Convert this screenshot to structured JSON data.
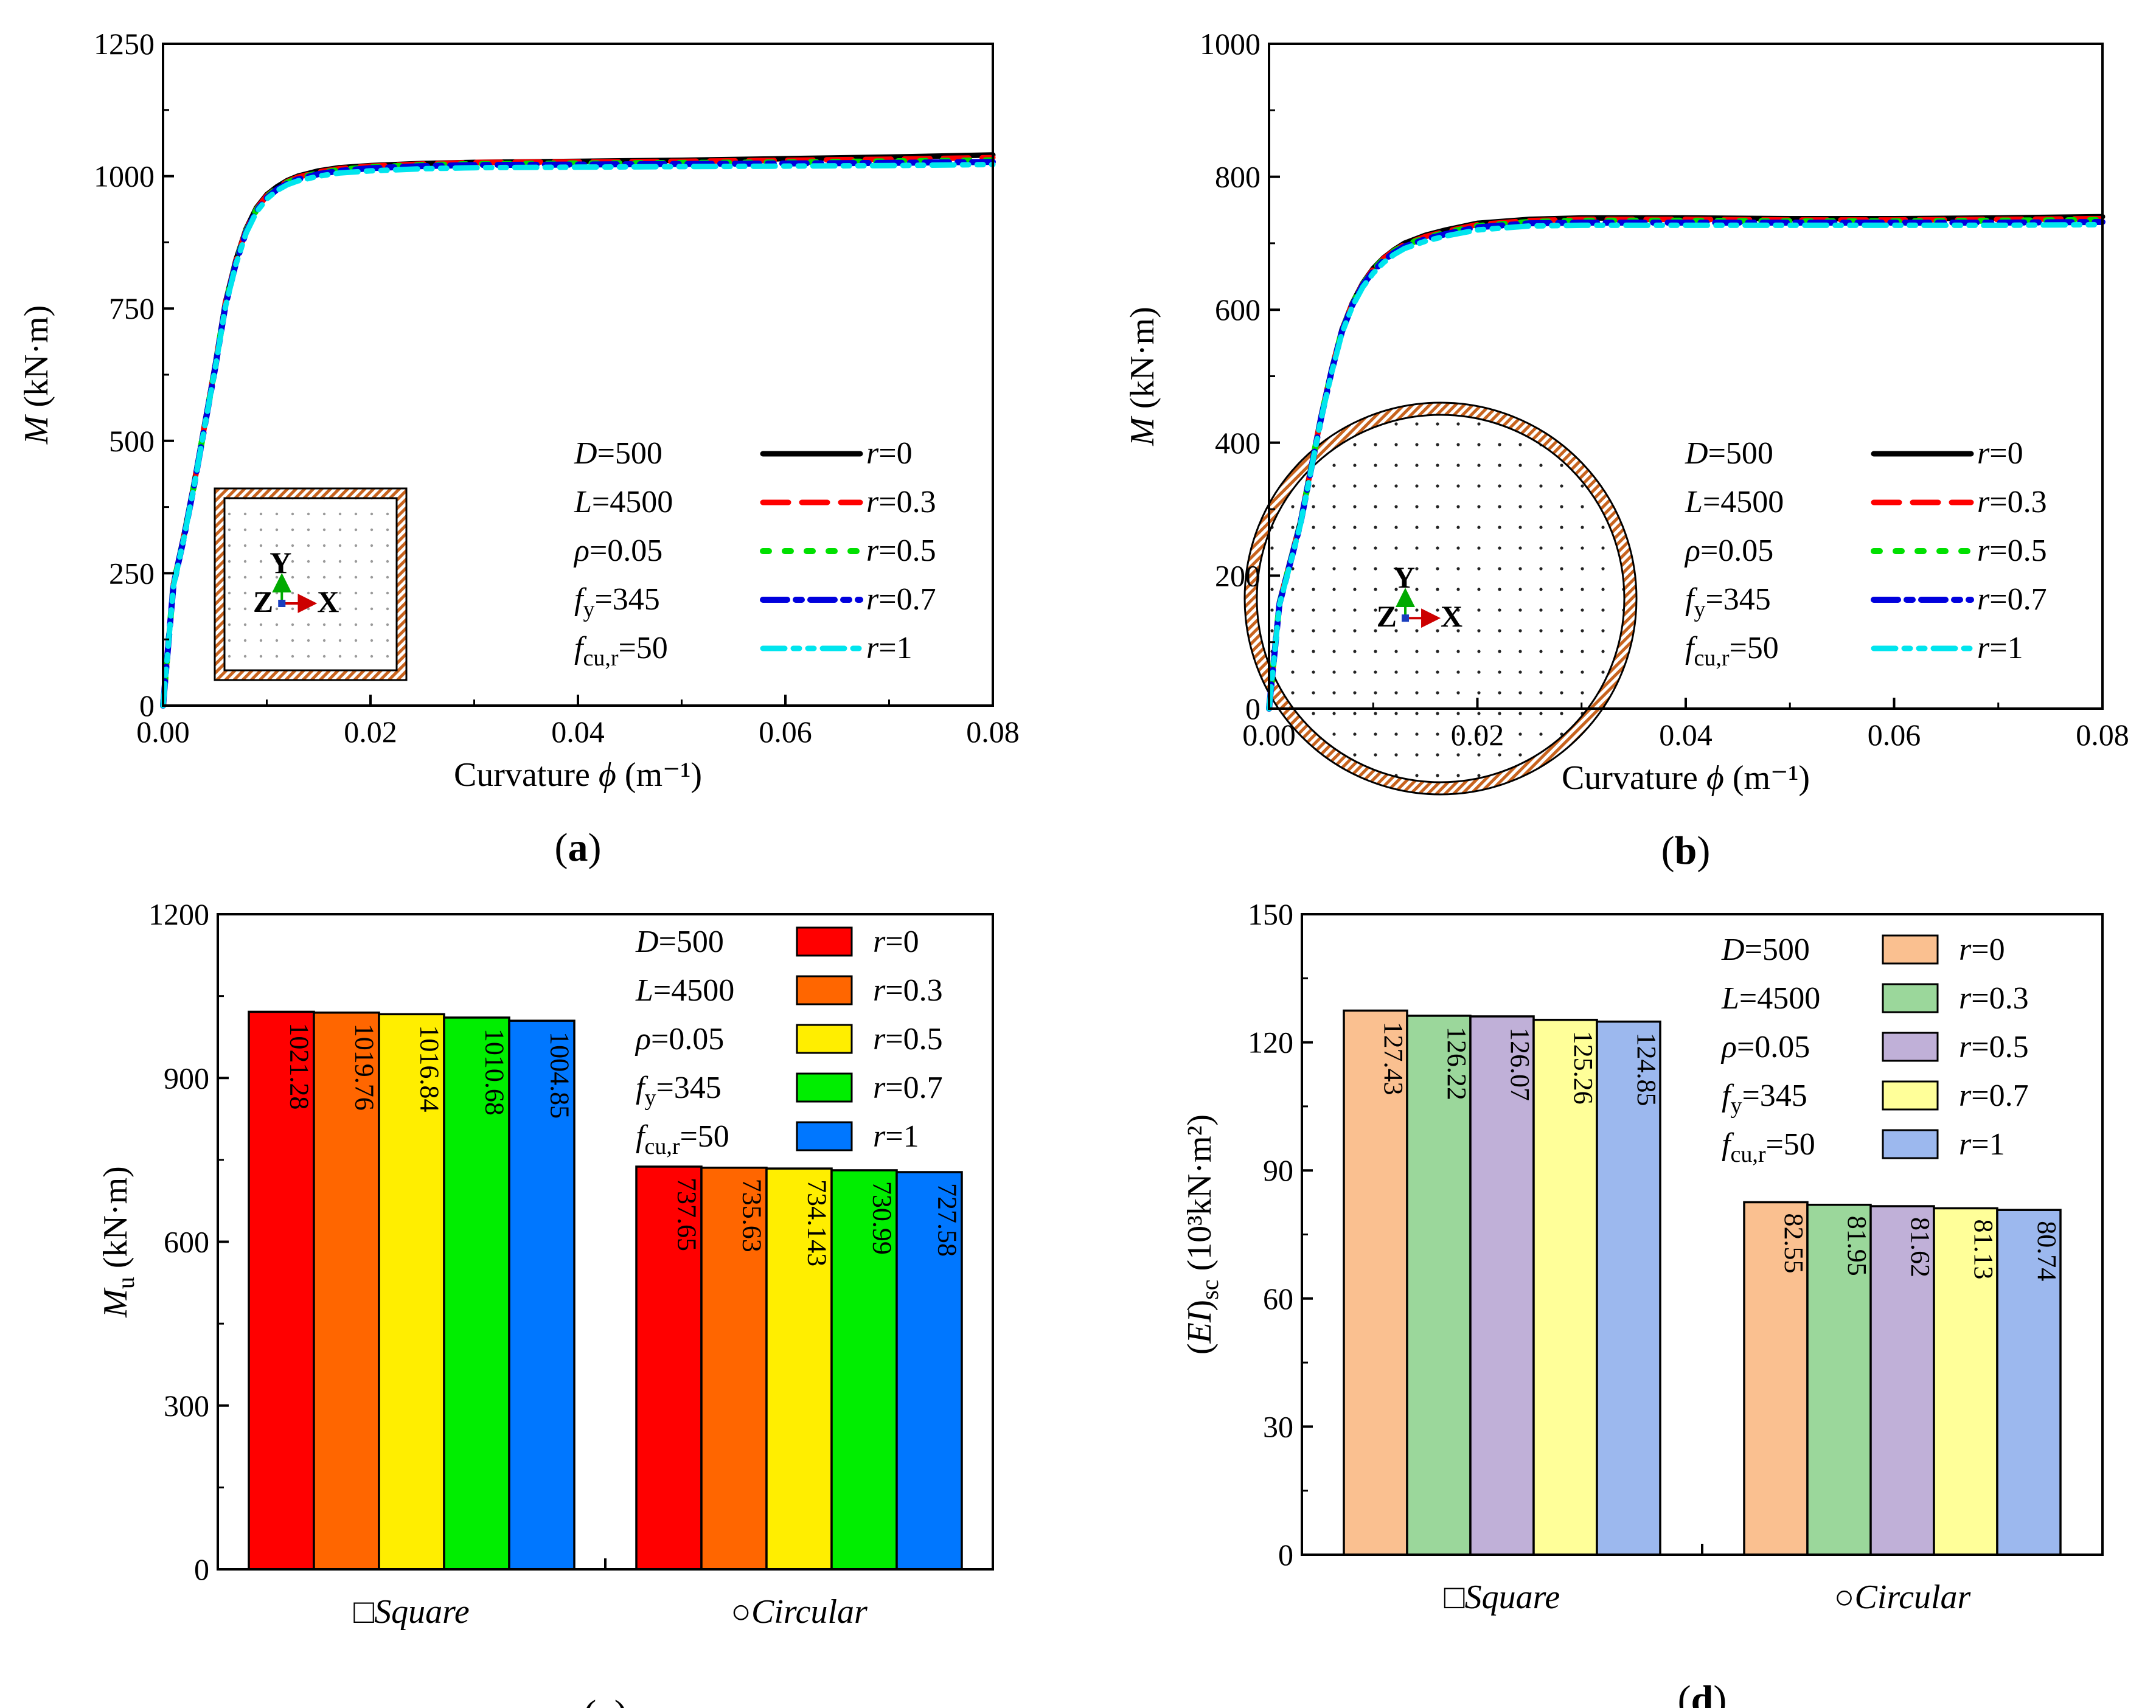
{
  "chart_data": [
    {
      "id": "a",
      "type": "line",
      "caption": "(a)",
      "xlabel": "Curvature ϕ (m⁻¹)",
      "ylabel": "M (kN·m)",
      "xlim": [
        0,
        0.08
      ],
      "ylim": [
        0,
        1250
      ],
      "xticks": [
        "0.00",
        "0.02",
        "0.04",
        "0.06",
        "0.08"
      ],
      "yticks": [
        "0",
        "250",
        "500",
        "750",
        "1000",
        "1250"
      ],
      "section": "square",
      "inset_axes": {
        "x": "X",
        "y": "Y",
        "z": "Z"
      },
      "params": [
        "D=500",
        "L=4500",
        "ρ=0.05",
        "fy=345",
        "fcu,r=50"
      ],
      "series": [
        {
          "name": "r=0",
          "color": "#000000",
          "x": [
            0,
            0.001,
            0.002,
            0.003,
            0.004,
            0.005,
            0.006,
            0.007,
            0.008,
            0.009,
            0.01,
            0.011,
            0.012,
            0.013,
            0.015,
            0.017,
            0.02,
            0.025,
            0.03,
            0.04,
            0.05,
            0.06,
            0.07,
            0.08
          ],
          "y": [
            0,
            230,
            320,
            420,
            530,
            640,
            760,
            840,
            900,
            940,
            965,
            980,
            992,
            1000,
            1010,
            1016,
            1020,
            1024,
            1026,
            1028,
            1030,
            1033,
            1036,
            1040
          ]
        },
        {
          "name": "r=0.3",
          "color": "#ff0000",
          "x": [
            0,
            0.001,
            0.002,
            0.003,
            0.004,
            0.005,
            0.006,
            0.007,
            0.008,
            0.009,
            0.01,
            0.011,
            0.012,
            0.013,
            0.015,
            0.017,
            0.02,
            0.025,
            0.03,
            0.04,
            0.05,
            0.06,
            0.07,
            0.08
          ],
          "y": [
            0,
            229,
            318,
            418,
            528,
            638,
            758,
            838,
            898,
            938,
            963,
            978,
            990,
            998,
            1008,
            1014,
            1019,
            1023,
            1026,
            1027,
            1028,
            1030,
            1032,
            1035
          ]
        },
        {
          "name": "r=0.5",
          "color": "#00e000",
          "x": [
            0,
            0.001,
            0.002,
            0.003,
            0.004,
            0.005,
            0.006,
            0.007,
            0.008,
            0.009,
            0.01,
            0.011,
            0.012,
            0.013,
            0.015,
            0.017,
            0.02,
            0.025,
            0.03,
            0.04,
            0.05,
            0.06,
            0.07,
            0.08
          ],
          "y": [
            0,
            228,
            317,
            417,
            527,
            636,
            756,
            836,
            896,
            936,
            961,
            977,
            988,
            996,
            1006,
            1012,
            1017,
            1021,
            1023,
            1024,
            1025,
            1026,
            1028,
            1030
          ]
        },
        {
          "name": "r=0.7",
          "color": "#0000dd",
          "x": [
            0,
            0.001,
            0.002,
            0.003,
            0.004,
            0.005,
            0.006,
            0.007,
            0.008,
            0.009,
            0.01,
            0.011,
            0.012,
            0.013,
            0.015,
            0.017,
            0.02,
            0.025,
            0.03,
            0.04,
            0.05,
            0.06,
            0.07,
            0.08
          ],
          "y": [
            0,
            227,
            316,
            416,
            526,
            635,
            754,
            834,
            894,
            934,
            959,
            975,
            986,
            994,
            1004,
            1010,
            1015,
            1019,
            1021,
            1022,
            1023,
            1024,
            1025,
            1027
          ]
        },
        {
          "name": "r=1",
          "color": "#00e5ee",
          "x": [
            0,
            0.001,
            0.002,
            0.003,
            0.004,
            0.005,
            0.006,
            0.007,
            0.008,
            0.009,
            0.01,
            0.011,
            0.012,
            0.013,
            0.015,
            0.017,
            0.02,
            0.025,
            0.03,
            0.04,
            0.05,
            0.06,
            0.07,
            0.08
          ],
          "y": [
            0,
            226,
            315,
            415,
            525,
            634,
            752,
            832,
            892,
            932,
            957,
            973,
            984,
            991,
            1000,
            1006,
            1010,
            1014,
            1016,
            1017,
            1018,
            1019,
            1020,
            1022
          ]
        }
      ]
    },
    {
      "id": "b",
      "type": "line",
      "caption": "(b)",
      "xlabel": "Curvature ϕ (m⁻¹)",
      "ylabel": "M (kN·m)",
      "xlim": [
        0,
        0.08
      ],
      "ylim": [
        0,
        1000
      ],
      "xticks": [
        "0.00",
        "0.02",
        "0.04",
        "0.06",
        "0.08"
      ],
      "yticks": [
        "0",
        "200",
        "400",
        "600",
        "800",
        "1000"
      ],
      "section": "circular",
      "inset_axes": {
        "x": "X",
        "y": "Y",
        "z": "Z"
      },
      "params": [
        "D=500",
        "L=4500",
        "ρ=0.05",
        "fy=345",
        "fcu,r=50"
      ],
      "series": [
        {
          "name": "r=0",
          "color": "#000000",
          "x": [
            0,
            0.001,
            0.002,
            0.003,
            0.004,
            0.005,
            0.006,
            0.007,
            0.008,
            0.009,
            0.01,
            0.011,
            0.012,
            0.013,
            0.015,
            0.017,
            0.02,
            0.025,
            0.03,
            0.04,
            0.05,
            0.06,
            0.07,
            0.08
          ],
          "y": [
            0,
            160,
            220,
            280,
            360,
            440,
            510,
            570,
            610,
            640,
            662,
            678,
            690,
            700,
            712,
            720,
            730,
            736,
            738,
            738,
            737,
            737,
            738,
            740
          ]
        },
        {
          "name": "r=0.3",
          "color": "#ff0000",
          "x": [
            0,
            0.001,
            0.002,
            0.003,
            0.004,
            0.005,
            0.006,
            0.007,
            0.008,
            0.009,
            0.01,
            0.011,
            0.012,
            0.013,
            0.015,
            0.017,
            0.02,
            0.025,
            0.03,
            0.04,
            0.05,
            0.06,
            0.07,
            0.08
          ],
          "y": [
            0,
            159,
            219,
            279,
            359,
            439,
            509,
            569,
            609,
            639,
            661,
            677,
            689,
            698,
            710,
            718,
            728,
            734,
            736,
            736,
            735,
            735,
            736,
            737
          ]
        },
        {
          "name": "r=0.5",
          "color": "#00e000",
          "x": [
            0,
            0.001,
            0.002,
            0.003,
            0.004,
            0.005,
            0.006,
            0.007,
            0.008,
            0.009,
            0.01,
            0.011,
            0.012,
            0.013,
            0.015,
            0.017,
            0.02,
            0.025,
            0.03,
            0.04,
            0.05,
            0.06,
            0.07,
            0.08
          ],
          "y": [
            0,
            158,
            218,
            278,
            358,
            438,
            508,
            568,
            608,
            638,
            660,
            676,
            688,
            697,
            708,
            716,
            726,
            732,
            734,
            734,
            733,
            733,
            734,
            735
          ]
        },
        {
          "name": "r=0.7",
          "color": "#0000dd",
          "x": [
            0,
            0.001,
            0.002,
            0.003,
            0.004,
            0.005,
            0.006,
            0.007,
            0.008,
            0.009,
            0.01,
            0.011,
            0.012,
            0.013,
            0.015,
            0.017,
            0.02,
            0.025,
            0.03,
            0.04,
            0.05,
            0.06,
            0.07,
            0.08
          ],
          "y": [
            0,
            157,
            217,
            277,
            357,
            437,
            507,
            567,
            607,
            637,
            658,
            674,
            686,
            695,
            706,
            714,
            724,
            730,
            731,
            731,
            731,
            731,
            731,
            732
          ]
        },
        {
          "name": "r=1",
          "color": "#00e5ee",
          "x": [
            0,
            0.001,
            0.002,
            0.003,
            0.004,
            0.005,
            0.006,
            0.007,
            0.008,
            0.009,
            0.01,
            0.011,
            0.012,
            0.013,
            0.015,
            0.017,
            0.02,
            0.025,
            0.03,
            0.04,
            0.05,
            0.06,
            0.07,
            0.08
          ],
          "y": [
            0,
            156,
            216,
            276,
            356,
            436,
            505,
            565,
            605,
            634,
            655,
            671,
            683,
            692,
            703,
            711,
            720,
            726,
            727,
            727,
            727,
            727,
            727,
            728
          ]
        }
      ]
    },
    {
      "id": "c",
      "type": "bar",
      "caption": "(c)",
      "ylabel": "Mu (kN·m)",
      "ylim": [
        0,
        1200
      ],
      "yticks": [
        "0",
        "300",
        "600",
        "900",
        "1200"
      ],
      "categories": [
        "□Square",
        "○Circular"
      ],
      "params": [
        "D=500",
        "L=4500",
        "ρ=0.05",
        "fy=345",
        "fcu,r=50"
      ],
      "series": [
        {
          "name": "r=0",
          "color": "#ff0000",
          "values": [
            1021.28,
            737.65
          ],
          "labels": [
            "1021.28",
            "737.65"
          ]
        },
        {
          "name": "r=0.3",
          "color": "#ff6600",
          "values": [
            1019.76,
            735.63
          ],
          "labels": [
            "1019.76",
            "735.63"
          ]
        },
        {
          "name": "r=0.5",
          "color": "#ffee00",
          "values": [
            1016.84,
            734.143
          ],
          "labels": [
            "1016.84",
            "734.143"
          ]
        },
        {
          "name": "r=0.7",
          "color": "#00ee00",
          "values": [
            1010.68,
            730.99
          ],
          "labels": [
            "1010.68",
            "730.99"
          ]
        },
        {
          "name": "r=1",
          "color": "#0077ff",
          "values": [
            1004.85,
            727.58
          ],
          "labels": [
            "1004.85",
            "727.58"
          ]
        }
      ]
    },
    {
      "id": "d",
      "type": "bar",
      "caption": "(d)",
      "ylabel": "(EI)sc (10³kN·m²)",
      "ylim": [
        0,
        150
      ],
      "yticks": [
        "0",
        "30",
        "60",
        "90",
        "120",
        "150"
      ],
      "categories": [
        "□Square",
        "○Circular"
      ],
      "params": [
        "D=500",
        "L=4500",
        "ρ=0.05",
        "fy=345",
        "fcu,r=50"
      ],
      "series": [
        {
          "name": "r=0",
          "color": "#fac090",
          "values": [
            127.43,
            82.55
          ],
          "labels": [
            "127.43",
            "82.55"
          ]
        },
        {
          "name": "r=0.3",
          "color": "#9bd79b",
          "values": [
            126.22,
            81.95
          ],
          "labels": [
            "126.22",
            "81.95"
          ]
        },
        {
          "name": "r=0.5",
          "color": "#c0b0d8",
          "values": [
            126.07,
            81.62
          ],
          "labels": [
            "126.07",
            "81.62"
          ]
        },
        {
          "name": "r=0.7",
          "color": "#ffff99",
          "values": [
            125.26,
            81.13
          ],
          "labels": [
            "125.26",
            "81.13"
          ]
        },
        {
          "name": "r=1",
          "color": "#9cb8ee",
          "values": [
            124.85,
            80.74
          ],
          "labels": [
            "124.85",
            "80.74"
          ]
        }
      ]
    }
  ]
}
